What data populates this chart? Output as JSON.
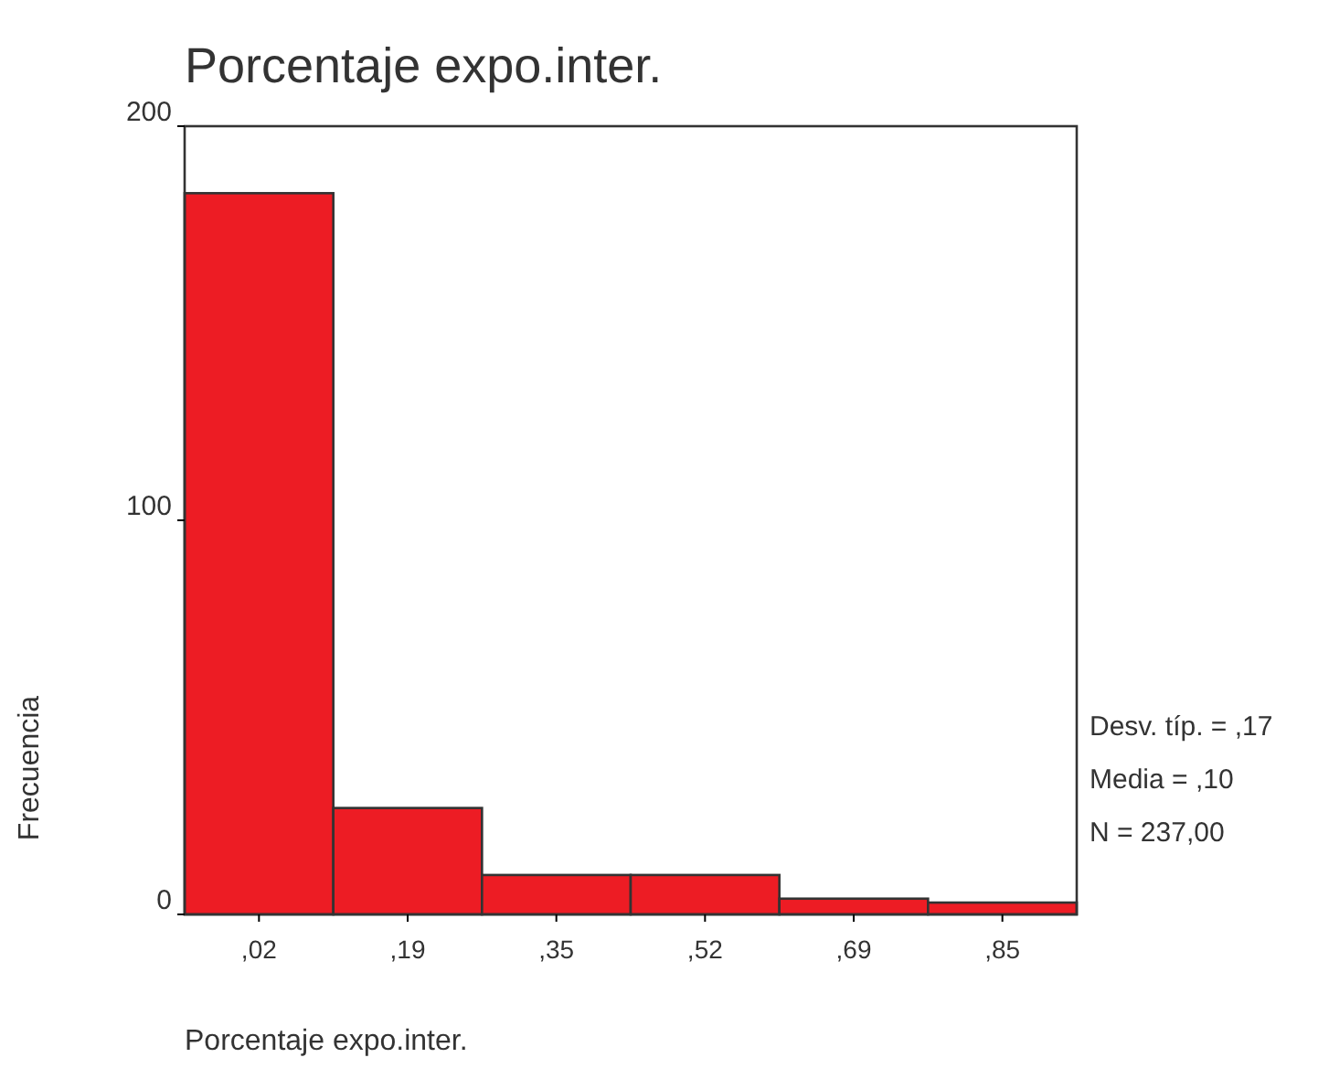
{
  "chart_data": {
    "type": "bar",
    "title": "Porcentaje expo.inter.",
    "xlabel": "Porcentaje expo.inter.",
    "ylabel": "Frecuencia",
    "categories": [
      ",02",
      ",19",
      ",35",
      ",52",
      ",69",
      ",85"
    ],
    "values": [
      183,
      27,
      10,
      10,
      4,
      3
    ],
    "color": "#ed1c24",
    "ylim": [
      0,
      200
    ],
    "yticks": [
      0,
      100,
      200
    ],
    "grid": false,
    "annotations": [
      "Desv. típ. = ,17",
      "Media = ,10",
      "N = 237,00"
    ]
  }
}
